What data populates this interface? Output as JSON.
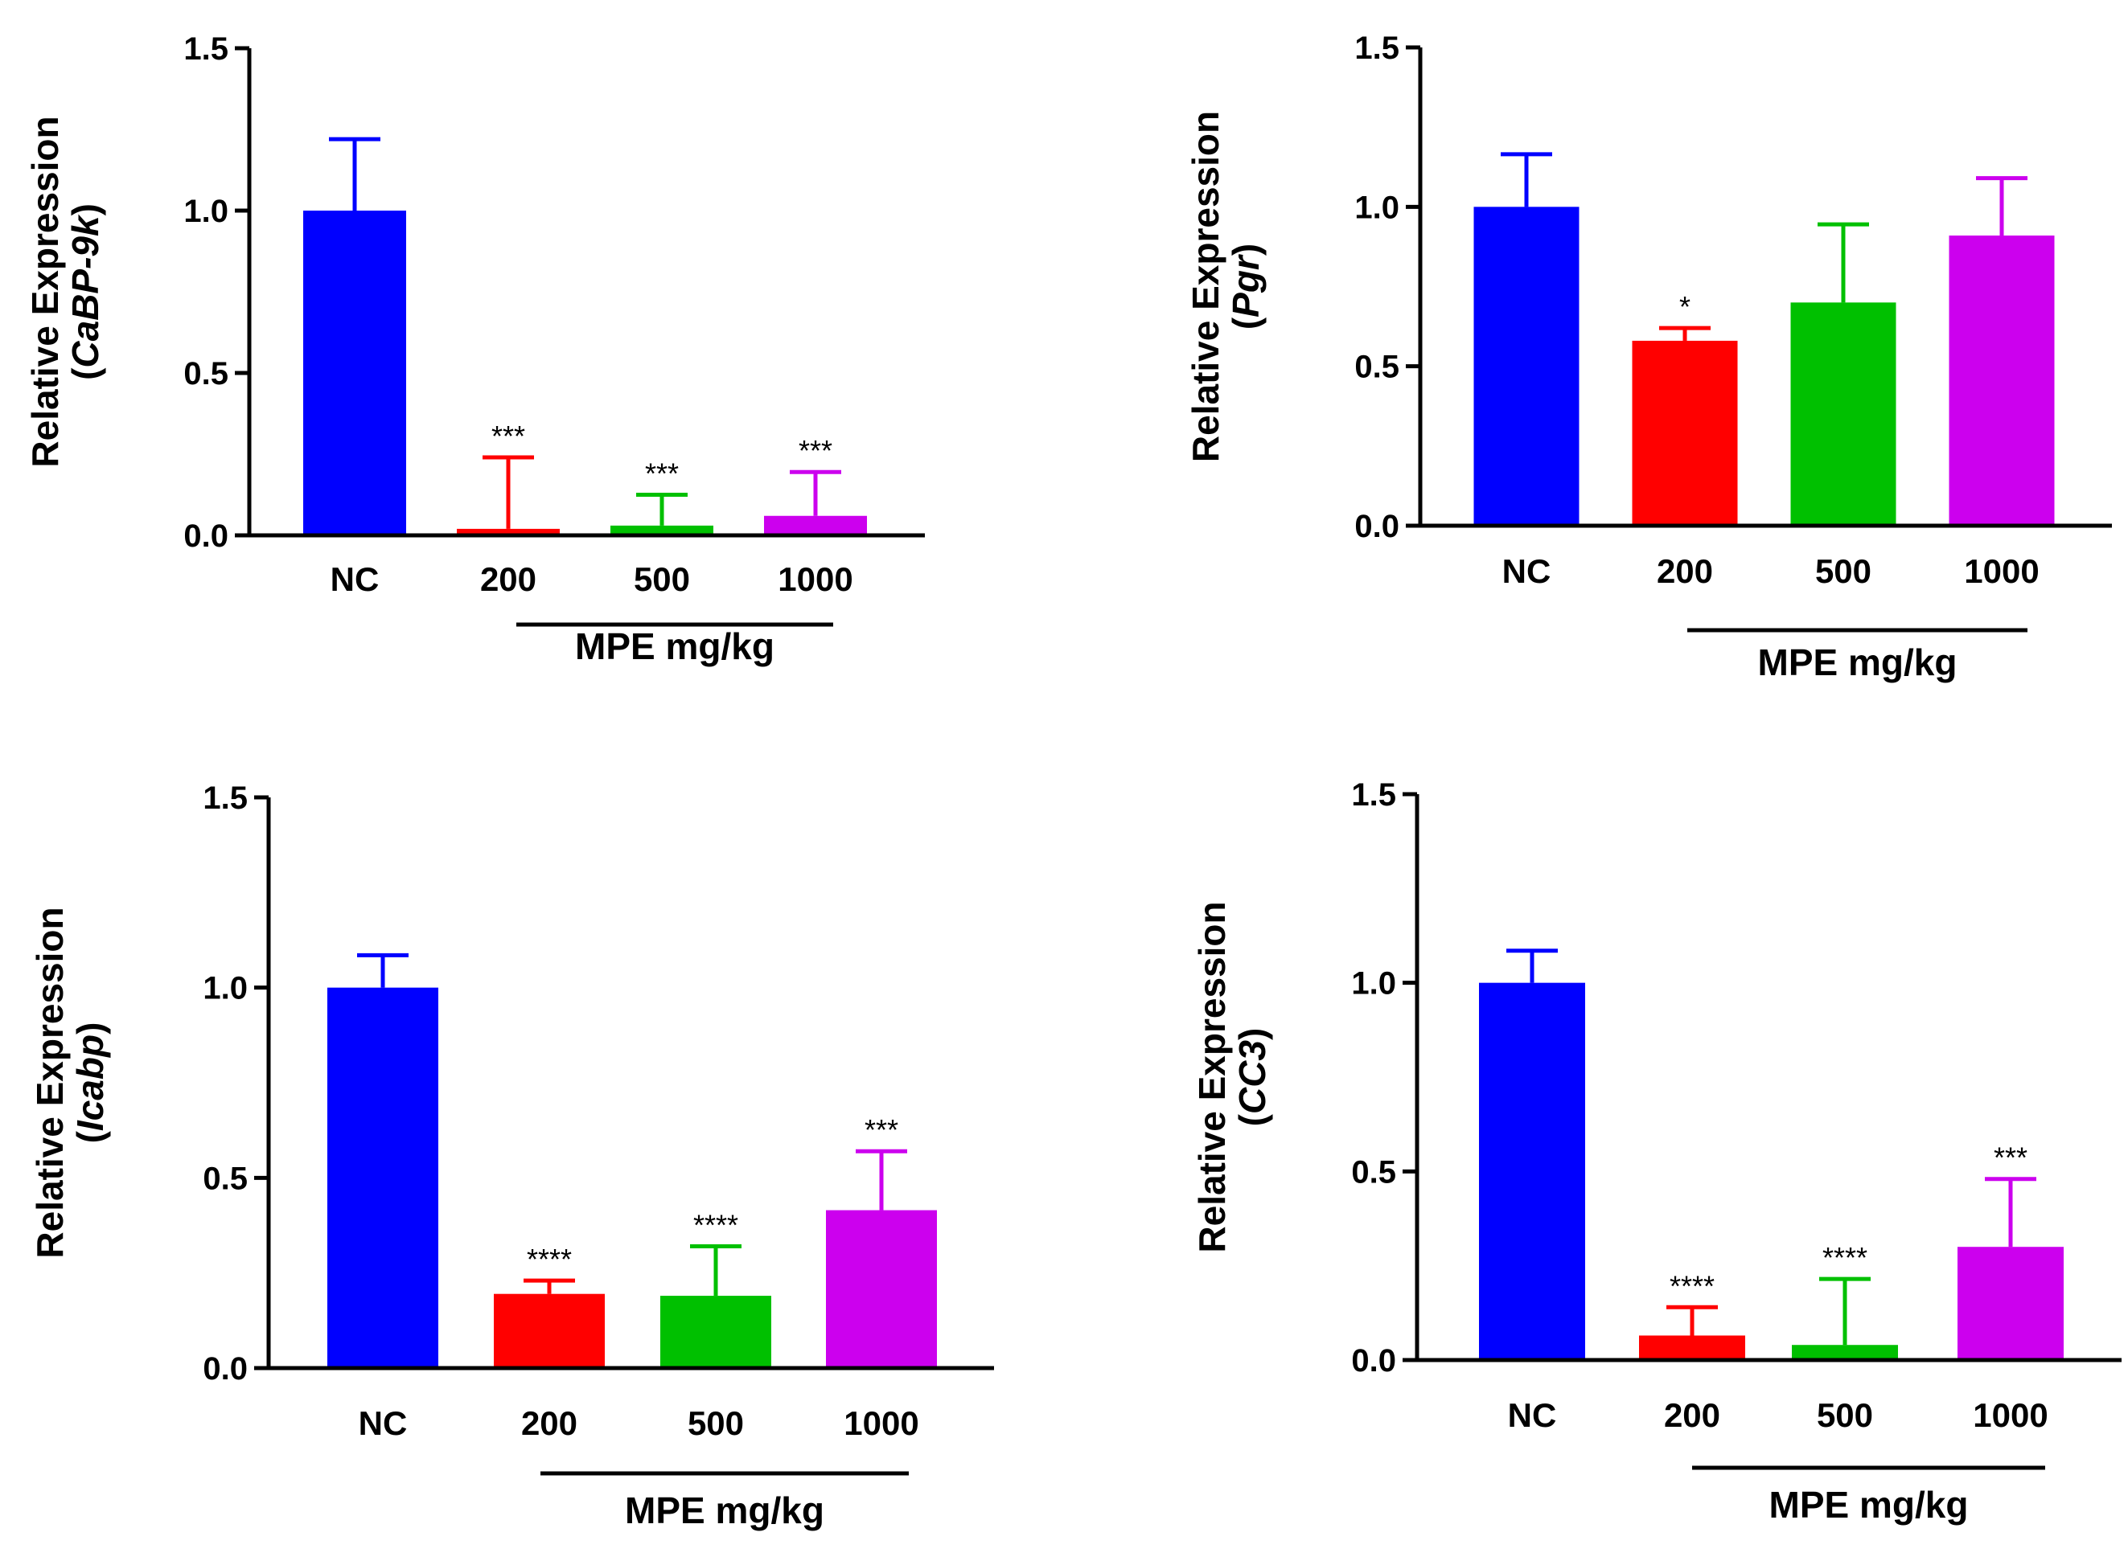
{
  "chart_data": [
    {
      "type": "bar",
      "title": "",
      "ylabel": "Relative Expression",
      "ylabel_gene": "CaBP-9k",
      "xlabel": "MPE mg/kg",
      "categories": [
        "NC",
        "200",
        "500",
        "1000"
      ],
      "values": [
        1.0,
        0.02,
        0.03,
        0.06
      ],
      "errors": [
        0.22,
        0.22,
        0.095,
        0.135
      ],
      "significance": [
        "",
        "***",
        "***",
        "***"
      ],
      "group_label": "MPE mg/kg",
      "ylim": [
        0,
        1.5
      ],
      "yticks": [
        0.0,
        0.5,
        1.0,
        1.5
      ],
      "ytick_labels": [
        "0.0",
        "0.5",
        "1.0",
        "1.5"
      ]
    },
    {
      "type": "bar",
      "title": "",
      "ylabel": "Relative Expression",
      "ylabel_gene": "Pgr",
      "xlabel": "MPE mg/kg",
      "categories": [
        "NC",
        "200",
        "500",
        "1000"
      ],
      "values": [
        1.0,
        0.58,
        0.7,
        0.91
      ],
      "errors": [
        0.165,
        0.04,
        0.245,
        0.18
      ],
      "significance": [
        "",
        "*",
        "",
        ""
      ],
      "group_label": "MPE mg/kg",
      "ylim": [
        0,
        1.5
      ],
      "yticks": [
        0.0,
        0.5,
        1.0,
        1.5
      ],
      "ytick_labels": [
        "0.0",
        "0.5",
        "1.0",
        "1.5"
      ]
    },
    {
      "type": "bar",
      "title": "",
      "ylabel": "Relative Expression",
      "ylabel_gene": "Icabp",
      "xlabel": "MPE mg/kg",
      "categories": [
        "NC",
        "200",
        "500",
        "1000"
      ],
      "values": [
        1.0,
        0.195,
        0.19,
        0.415
      ],
      "errors": [
        0.085,
        0.035,
        0.13,
        0.155
      ],
      "significance": [
        "",
        "****",
        "****",
        "***"
      ],
      "group_label": "MPE mg/kg",
      "ylim": [
        0,
        1.5
      ],
      "yticks": [
        0.0,
        0.5,
        1.0,
        1.5
      ],
      "ytick_labels": [
        "0.0",
        "0.5",
        "1.0",
        "1.5"
      ]
    },
    {
      "type": "bar",
      "title": "",
      "ylabel": "Relative Expression",
      "ylabel_gene": "CC3",
      "xlabel": "MPE mg/kg",
      "categories": [
        "NC",
        "200",
        "500",
        "1000"
      ],
      "values": [
        1.0,
        0.065,
        0.04,
        0.3
      ],
      "errors": [
        0.085,
        0.075,
        0.175,
        0.18
      ],
      "significance": [
        "",
        "****",
        "****",
        "***"
      ],
      "group_label": "MPE mg/kg",
      "ylim": [
        0,
        1.5
      ],
      "yticks": [
        0.0,
        0.5,
        1.0,
        1.5
      ],
      "ytick_labels": [
        "0.0",
        "0.5",
        "1.0",
        "1.5"
      ]
    }
  ],
  "colors": {
    "NC": "#0000ff",
    "200": "#ff0000",
    "500": "#00c000",
    "1000": "#cc00ee",
    "axis": "#000000"
  }
}
